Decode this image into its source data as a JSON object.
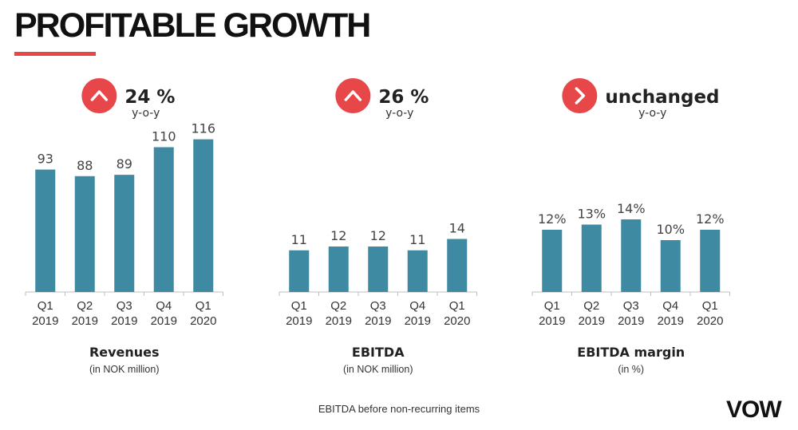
{
  "page": {
    "title": "PROFITABLE GROWTH",
    "footnote": "EBITDA before non-recurring items",
    "logo": "VOW",
    "accent_color": "#e8474a",
    "bar_color": "#3f8aa3"
  },
  "chart_data": [
    {
      "type": "bar",
      "title": "Revenues",
      "subtitle": "(in NOK million)",
      "categories": [
        "Q1\n2019",
        "Q2\n2019",
        "Q3\n2019",
        "Q4\n2019",
        "Q1\n2020"
      ],
      "values": [
        93,
        88,
        89,
        110,
        116
      ],
      "value_labels": [
        "93",
        "88",
        "89",
        "110",
        "116"
      ],
      "ylim": [
        0,
        120
      ],
      "grid": false,
      "indicator": {
        "icon": "chevron-up-icon",
        "text": "24 %",
        "subtext": "y-o-y"
      }
    },
    {
      "type": "bar",
      "title": "EBITDA",
      "subtitle": "(in NOK million)",
      "categories": [
        "Q1\n2019",
        "Q2\n2019",
        "Q3\n2019",
        "Q4\n2019",
        "Q1\n2020"
      ],
      "values": [
        11,
        12,
        12,
        11,
        14
      ],
      "value_labels": [
        "11",
        "12",
        "12",
        "11",
        "14"
      ],
      "ylim": [
        0,
        40
      ],
      "grid": false,
      "indicator": {
        "icon": "chevron-up-icon",
        "text": "26 %",
        "subtext": "y-o-y"
      }
    },
    {
      "type": "bar",
      "title": "EBITDA margin",
      "subtitle": "(in %)",
      "categories": [
        "Q1\n2019",
        "Q2\n2019",
        "Q3\n2019",
        "Q4\n2019",
        "Q1\n2020"
      ],
      "values": [
        12,
        13,
        14,
        10,
        12
      ],
      "value_labels": [
        "12%",
        "13%",
        "14%",
        "10%",
        "12%"
      ],
      "ylim": [
        0,
        40
      ],
      "grid": false,
      "indicator": {
        "icon": "chevron-right-icon",
        "text": "unchanged",
        "subtext": "y-o-y"
      }
    }
  ]
}
